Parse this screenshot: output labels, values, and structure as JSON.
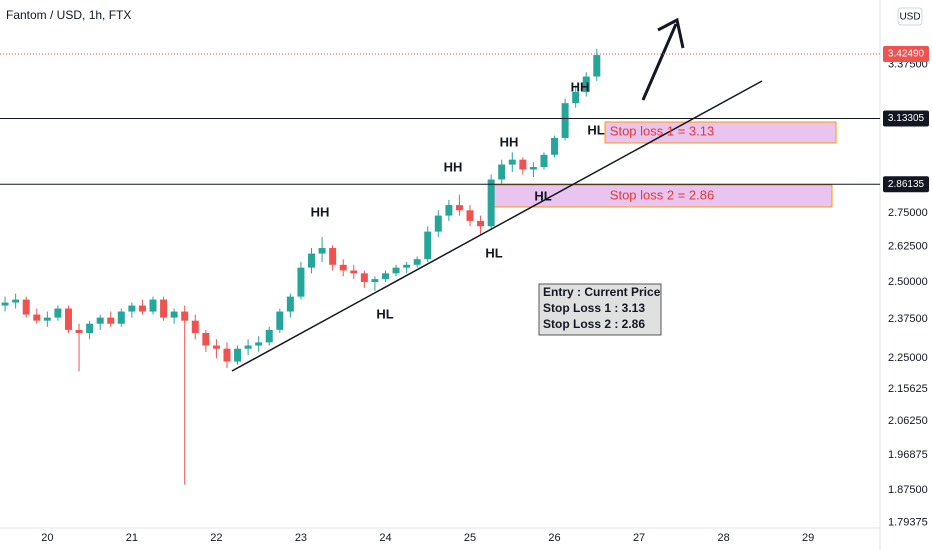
{
  "chart_data": {
    "type": "candlestick",
    "title": "Fantom / USD, 1h, FTX",
    "currency_button": "USD",
    "log_scale": true,
    "grid": false,
    "up_color": "#26a69a",
    "down_color": "#ef5350",
    "xlim": [
      19.44,
      29.85
    ],
    "xticks": [
      20,
      21,
      22,
      23,
      24,
      25,
      26,
      27,
      28,
      29
    ],
    "ylim": [
      1.78,
      3.69
    ],
    "yticks": [
      {
        "value": 3.375,
        "label": "3.37500"
      },
      {
        "value": 2.75,
        "label": "2.75000"
      },
      {
        "value": 2.625,
        "label": "2.62500"
      },
      {
        "value": 2.5,
        "label": "2.50000"
      },
      {
        "value": 2.375,
        "label": "2.37500"
      },
      {
        "value": 2.25,
        "label": "2.25000"
      },
      2.15625,
      {
        "value": 2.0625,
        "label": "2.06250"
      },
      1.96875,
      {
        "value": 1.875,
        "label": "1.87500"
      },
      1.79375
    ],
    "x": [
      19.5,
      19.625,
      19.75,
      19.875,
      20,
      20.125,
      20.25,
      20.375,
      20.5,
      20.625,
      20.75,
      20.875,
      21,
      21.125,
      21.25,
      21.375,
      21.5,
      21.625,
      21.75,
      21.875,
      22,
      22.125,
      22.25,
      22.375,
      22.5,
      22.625,
      22.75,
      22.875,
      23,
      23.125,
      23.25,
      23.375,
      23.5,
      23.625,
      23.75,
      23.875,
      24,
      24.125,
      24.25,
      24.375,
      24.5,
      24.625,
      24.75,
      24.875,
      25,
      25.125,
      25.25,
      25.375,
      25.5,
      25.625,
      25.75,
      25.875,
      26,
      26.125,
      26.25,
      26.375,
      26.5
    ],
    "open": [
      2.42,
      2.43,
      2.44,
      2.39,
      2.37,
      2.38,
      2.41,
      2.34,
      2.33,
      2.36,
      2.38,
      2.36,
      2.4,
      2.42,
      2.4,
      2.44,
      2.38,
      2.4,
      2.37,
      2.33,
      2.29,
      2.28,
      2.24,
      2.28,
      2.29,
      2.3,
      2.34,
      2.4,
      2.45,
      2.55,
      2.6,
      2.62,
      2.56,
      2.54,
      2.53,
      2.5,
      2.51,
      2.53,
      2.55,
      2.56,
      2.58,
      2.68,
      2.74,
      2.78,
      2.76,
      2.72,
      2.7,
      2.88,
      2.94,
      2.96,
      2.92,
      2.93,
      2.98,
      3.05,
      3.2,
      3.25,
      3.32
    ],
    "high": [
      2.45,
      2.46,
      2.45,
      2.41,
      2.4,
      2.42,
      2.42,
      2.36,
      2.37,
      2.39,
      2.4,
      2.41,
      2.43,
      2.44,
      2.45,
      2.45,
      2.41,
      2.42,
      2.39,
      2.34,
      2.31,
      2.3,
      2.29,
      2.31,
      2.32,
      2.35,
      2.41,
      2.46,
      2.57,
      2.62,
      2.66,
      2.63,
      2.58,
      2.56,
      2.54,
      2.52,
      2.54,
      2.56,
      2.57,
      2.59,
      2.7,
      2.76,
      2.8,
      2.82,
      2.78,
      2.74,
      2.9,
      2.96,
      2.99,
      2.97,
      2.95,
      2.99,
      3.06,
      3.22,
      3.28,
      3.34,
      3.45
    ],
    "low": [
      2.4,
      2.41,
      2.38,
      2.36,
      2.35,
      2.37,
      2.33,
      2.21,
      2.31,
      2.34,
      2.35,
      2.35,
      2.38,
      2.39,
      2.39,
      2.37,
      2.36,
      1.89,
      2.31,
      2.27,
      2.25,
      2.22,
      2.23,
      2.26,
      2.27,
      2.29,
      2.33,
      2.38,
      2.44,
      2.53,
      2.57,
      2.54,
      2.52,
      2.51,
      2.48,
      2.47,
      2.5,
      2.52,
      2.53,
      2.55,
      2.57,
      2.66,
      2.72,
      2.74,
      2.7,
      2.67,
      2.69,
      2.86,
      2.91,
      2.9,
      2.89,
      2.92,
      2.97,
      3.04,
      3.18,
      3.23,
      3.3
    ],
    "close": [
      2.43,
      2.44,
      2.39,
      2.37,
      2.38,
      2.41,
      2.34,
      2.33,
      2.36,
      2.38,
      2.36,
      2.4,
      2.42,
      2.4,
      2.44,
      2.38,
      2.4,
      2.37,
      2.33,
      2.29,
      2.28,
      2.24,
      2.28,
      2.29,
      2.3,
      2.34,
      2.4,
      2.45,
      2.55,
      2.6,
      2.62,
      2.56,
      2.54,
      2.53,
      2.5,
      2.51,
      2.53,
      2.55,
      2.56,
      2.58,
      2.68,
      2.74,
      2.78,
      2.76,
      2.72,
      2.7,
      2.88,
      2.94,
      2.96,
      2.92,
      2.93,
      2.98,
      3.05,
      3.2,
      3.25,
      3.32,
      3.42
    ],
    "price_lines": [
      {
        "value": 3.4249,
        "label": "3.42490",
        "color": "#ef5350",
        "style": "dotted"
      },
      {
        "value": 3.13305,
        "label": "3.13305",
        "color": "#131722",
        "style": "solid"
      },
      {
        "value": 2.86135,
        "label": "2.86135",
        "color": "#131722",
        "style": "solid"
      }
    ],
    "annotations": [
      "HH",
      "HH",
      "HH",
      "HH",
      "HL",
      "HL",
      "HL",
      "HL"
    ],
    "stop_loss_labels": [
      "Stop loss 1 = 3.13",
      "Stop loss 2 = 2.86"
    ],
    "info_box": [
      "Entry : Current Price",
      "Stop Loss 1 : 3.13",
      "Stop Loss 2 : 2.86"
    ]
  }
}
